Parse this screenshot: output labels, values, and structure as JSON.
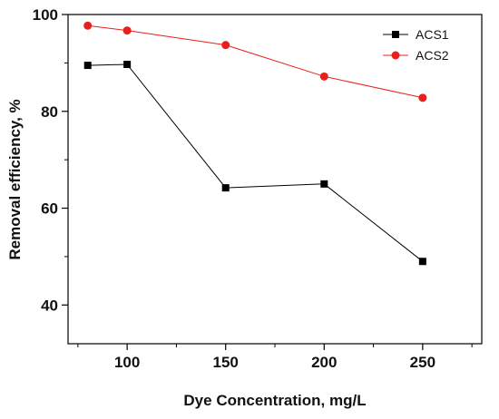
{
  "chart_data": {
    "type": "line",
    "title": "",
    "xlabel": "Dye Concentration, mg/L",
    "ylabel": "Removal efficiency, %",
    "xlim": [
      70,
      280
    ],
    "ylim": [
      32,
      100
    ],
    "xticks_major": [
      100,
      150,
      200,
      250
    ],
    "xticks_minor": [
      75,
      125,
      175,
      225,
      275
    ],
    "yticks_major": [
      40,
      60,
      80,
      100
    ],
    "yticks_minor": [
      50,
      70,
      90
    ],
    "grid": false,
    "legend_position": "top-right",
    "series": [
      {
        "name": "ACS1",
        "marker": "square",
        "color": "#000000",
        "x": [
          80,
          100,
          150,
          200,
          250
        ],
        "y": [
          89.5,
          89.7,
          64.2,
          65.0,
          49.0
        ]
      },
      {
        "name": "ACS2",
        "marker": "circle",
        "color": "#e8201c",
        "x": [
          80,
          100,
          150,
          200,
          250
        ],
        "y": [
          97.7,
          96.7,
          93.7,
          87.2,
          82.8
        ]
      }
    ]
  }
}
